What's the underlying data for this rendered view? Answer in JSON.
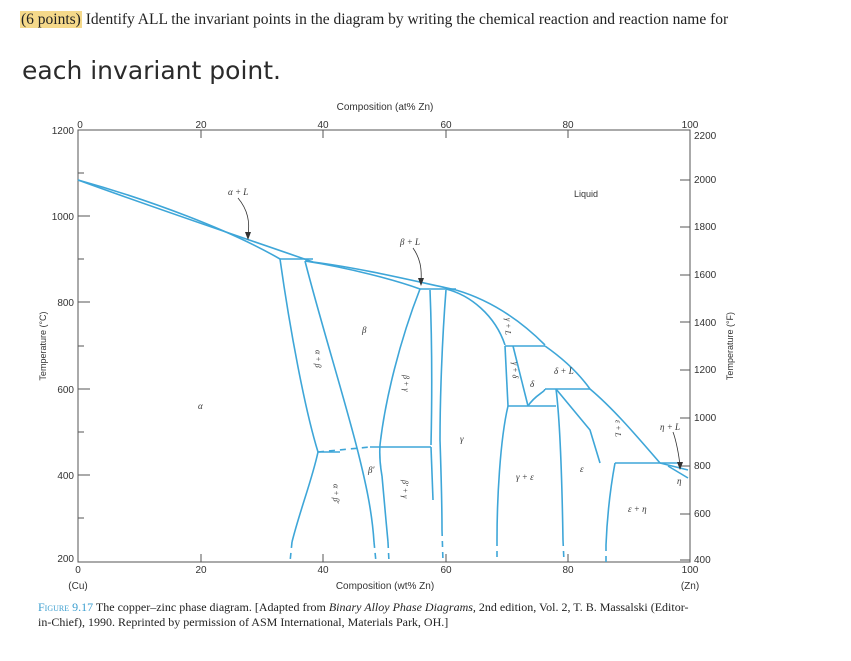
{
  "question": {
    "points": "(6 points)",
    "text": " Identify ALL the invariant points in the diagram by writing the chemical reaction and reaction name for",
    "heading": "each invariant point."
  },
  "chart_data": {
    "type": "phase-diagram",
    "top_axis_label": "Composition (at% Zn)",
    "top_ticks": [
      "0",
      "20",
      "40",
      "60",
      "80",
      "100"
    ],
    "bottom_axis_label": "Composition (wt% Zn)",
    "bottom_ticks": [
      "0",
      "20",
      "40",
      "60",
      "80",
      "100"
    ],
    "bottom_end_labels": [
      "(Cu)",
      "(Zn)"
    ],
    "left_axis_label": "Temperature (°C)",
    "left_ticks": [
      "1200",
      "1000",
      "800",
      "600",
      "400",
      "200"
    ],
    "right_axis_label": "Temperature (°F)",
    "right_ticks": [
      "2200",
      "2000",
      "1800",
      "1600",
      "1400",
      "1200",
      "1000",
      "800",
      "600",
      "400"
    ],
    "line_color": "#3ea6d8",
    "regions": {
      "liquid": "Liquid",
      "alpha": "α",
      "alpha_L": "α + L",
      "beta_L": "β + L",
      "beta": "β",
      "alpha_beta": "α + β",
      "beta_gamma": "β + γ",
      "gamma": "γ",
      "gamma_L": "γ + L",
      "gamma_delta": "γ + δ",
      "delta": "δ",
      "delta_L": "δ + L",
      "epsilon_L": "ε + L",
      "eta_L": "η + L",
      "eta": "η",
      "beta_prime": "β′",
      "alpha_beta_prime": "α + β′",
      "beta_prime_gamma": "β′ + γ",
      "gamma_epsilon": "γ + ε",
      "epsilon": "ε",
      "epsilon_eta": "ε + η"
    }
  },
  "caption": {
    "figure": "Figure 9.17",
    "text1": "  The copper–zinc phase diagram. [Adapted from ",
    "source_title": "Binary Alloy Phase Diagrams,",
    "text2": " 2nd edition, Vol. 2, T. B. Massalski (Editor-in-Chief), 1990. Reprinted by permission of ASM International, Materials Park, OH.]"
  }
}
